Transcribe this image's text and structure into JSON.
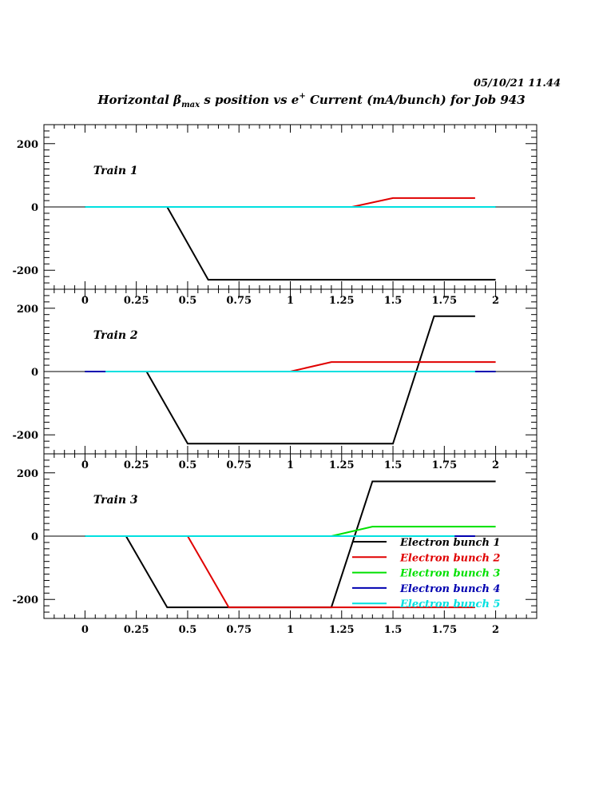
{
  "header": {
    "timestamp": "05/10/21   11.44",
    "title_prefix": "Horizontal ",
    "title_beta": "β",
    "title_sub": "max",
    "title_mid": " s position vs e",
    "title_sup": "+",
    "title_suffix": " Current (mA/bunch) for Job 943"
  },
  "chart_data": {
    "type": "line",
    "xlim": [
      -0.2,
      2.2
    ],
    "ylim": [
      -260,
      260
    ],
    "x_ticks": [
      "0",
      "0.25",
      "0.5",
      "0.75",
      "1",
      "1.25",
      "1.5",
      "1.75",
      "2"
    ],
    "y_ticks": [
      "200",
      "0",
      "-200"
    ],
    "legend_position": "bottom-right of third panel",
    "legend": [
      {
        "name": "Electron bunch 1",
        "color": "#000000"
      },
      {
        "name": "Electron bunch 2",
        "color": "#e00000"
      },
      {
        "name": "Electron bunch 3",
        "color": "#00e000"
      },
      {
        "name": "Electron bunch 4",
        "color": "#0000b0"
      },
      {
        "name": "Electron bunch 5",
        "color": "#00e0e0"
      }
    ],
    "panels": [
      {
        "label": "Train 1",
        "series": [
          {
            "color": "#000000",
            "points": [
              [
                0,
                0
              ],
              [
                0.4,
                0
              ],
              [
                0.6,
                -230
              ],
              [
                2,
                -230
              ]
            ]
          },
          {
            "color": "#e00000",
            "points": [
              [
                0,
                0
              ],
              [
                1.3,
                0
              ],
              [
                1.5,
                28
              ],
              [
                1.9,
                28
              ]
            ]
          },
          {
            "color": "#00e000",
            "points": [
              [
                0,
                0
              ],
              [
                2,
                0
              ]
            ]
          },
          {
            "color": "#0000b0",
            "points": [
              [
                0,
                0
              ],
              [
                2,
                0
              ]
            ]
          },
          {
            "color": "#00e0e0",
            "points": [
              [
                0,
                0
              ],
              [
                2,
                0
              ]
            ]
          }
        ]
      },
      {
        "label": "Train 2",
        "series": [
          {
            "color": "#000000",
            "points": [
              [
                0,
                0
              ],
              [
                0.3,
                0
              ],
              [
                0.5,
                -228
              ],
              [
                1.5,
                -228
              ],
              [
                1.7,
                175
              ],
              [
                1.9,
                175
              ]
            ]
          },
          {
            "color": "#e00000",
            "points": [
              [
                0,
                0
              ],
              [
                1,
                0
              ],
              [
                1.2,
                30
              ],
              [
                2,
                30
              ]
            ]
          },
          {
            "color": "#00e000",
            "points": [
              [
                0,
                0
              ],
              [
                2,
                0
              ]
            ]
          },
          {
            "color": "#0000b0",
            "points": [
              [
                0,
                0
              ],
              [
                0.1,
                0
              ],
              [
                1.9,
                0
              ],
              [
                2,
                0
              ]
            ]
          },
          {
            "color": "#00e0e0",
            "points": [
              [
                0.1,
                0
              ],
              [
                1.9,
                0
              ]
            ]
          }
        ]
      },
      {
        "label": "Train 3",
        "series": [
          {
            "color": "#000000",
            "points": [
              [
                0,
                0
              ],
              [
                0.2,
                0
              ],
              [
                0.4,
                -225
              ],
              [
                1.2,
                -225
              ],
              [
                1.4,
                173
              ],
              [
                2,
                173
              ]
            ]
          },
          {
            "color": "#e00000",
            "points": [
              [
                0,
                0
              ],
              [
                0.5,
                0
              ],
              [
                0.7,
                -225
              ],
              [
                1.9,
                -225
              ]
            ]
          },
          {
            "color": "#00e000",
            "points": [
              [
                0,
                0
              ],
              [
                1.2,
                0
              ],
              [
                1.4,
                30
              ],
              [
                2,
                30
              ]
            ]
          },
          {
            "color": "#0000b0",
            "points": [
              [
                0,
                0
              ],
              [
                1.9,
                0
              ]
            ]
          },
          {
            "color": "#00e0e0",
            "points": [
              [
                0,
                0
              ],
              [
                1.8,
                0
              ]
            ]
          }
        ]
      }
    ]
  }
}
